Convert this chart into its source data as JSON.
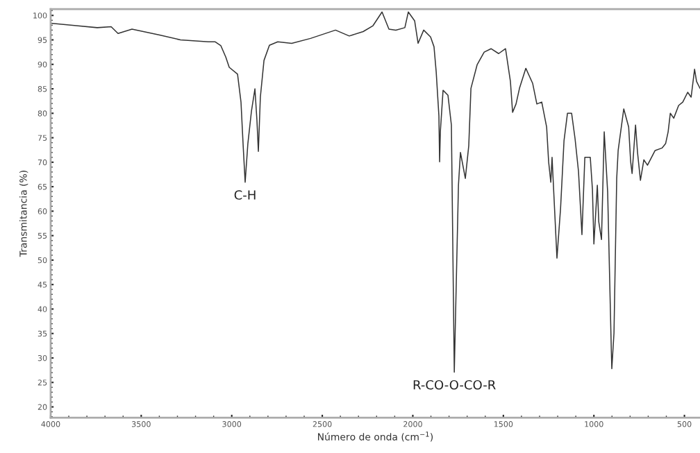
{
  "chart_data": {
    "type": "line",
    "xlabel": "Número de onda (cm$^{−1}$)",
    "ylabel": "Transmitancia (%)",
    "xlim": [
      4000,
      414
    ],
    "ylim": [
      17.8,
      101.3
    ],
    "xticks": [
      4000,
      3500,
      3000,
      2500,
      2000,
      1500,
      1000,
      500
    ],
    "yticks": [
      20,
      25,
      30,
      35,
      40,
      45,
      50,
      55,
      60,
      65,
      70,
      75,
      80,
      85,
      90,
      95,
      100
    ],
    "grid": false,
    "marker": "none",
    "line_style": "solid",
    "series": [
      {
        "color": "#333333",
        "x": [
          4000,
          3858,
          3743,
          3666,
          3628,
          3551,
          3398,
          3283,
          3129,
          3091,
          3060,
          3033,
          3014,
          2968,
          2949,
          2937,
          2926,
          2911,
          2891,
          2872,
          2861,
          2853,
          2842,
          2822,
          2792,
          2746,
          2669,
          2565,
          2427,
          2351,
          2274,
          2220,
          2170,
          2132,
          2094,
          2044,
          2025,
          1990,
          1971,
          1940,
          1902,
          1883,
          1871,
          1856,
          1852,
          1848,
          1833,
          1806,
          1787,
          1771,
          1748,
          1737,
          1710,
          1691,
          1679,
          1645,
          1606,
          1568,
          1526,
          1488,
          1461,
          1449,
          1430,
          1411,
          1376,
          1338,
          1315,
          1288,
          1261,
          1250,
          1238,
          1231,
          1204,
          1184,
          1165,
          1146,
          1123,
          1104,
          1085,
          1066,
          1050,
          1020,
          1008,
          1000,
          981,
          973,
          958,
          943,
          924,
          904,
          901,
          889,
          874,
          866,
          835,
          808,
          797,
          789,
          770,
          759,
          743,
          724,
          704,
          662,
          624,
          604,
          590,
          578,
          559,
          532,
          509,
          482,
          463,
          444,
          433,
          414
        ],
        "values": [
          98.4,
          97.9,
          97.5,
          97.7,
          96.3,
          97.2,
          96.0,
          95.0,
          94.6,
          94.6,
          93.8,
          91.5,
          89.4,
          88.0,
          82.3,
          73.4,
          65.9,
          73.8,
          80.5,
          85.0,
          78.6,
          72.2,
          83.3,
          90.8,
          93.9,
          94.6,
          94.3,
          95.3,
          97.0,
          95.8,
          96.7,
          97.9,
          100.7,
          97.2,
          97.0,
          97.5,
          100.7,
          98.9,
          94.3,
          97.0,
          95.6,
          93.6,
          88.5,
          79.5,
          70.1,
          76.2,
          84.7,
          83.7,
          77.6,
          27.1,
          65.3,
          72.0,
          66.7,
          73.4,
          85.1,
          89.9,
          92.5,
          93.2,
          92.2,
          93.2,
          86.5,
          80.2,
          81.9,
          85.1,
          89.2,
          86.1,
          81.9,
          82.3,
          77.2,
          70.1,
          65.9,
          71.0,
          50.4,
          60.6,
          74.4,
          80.0,
          80.0,
          74.8,
          68.1,
          55.2,
          71.0,
          71.0,
          64.4,
          53.3,
          65.3,
          57.8,
          54.2,
          76.2,
          63.9,
          32.0,
          27.8,
          35.1,
          66.7,
          72.4,
          80.9,
          77.2,
          70.1,
          67.7,
          77.6,
          72.0,
          66.3,
          70.5,
          69.4,
          72.4,
          72.9,
          73.8,
          76.2,
          80.0,
          79.0,
          81.6,
          82.3,
          84.3,
          83.3,
          89.0,
          86.5,
          85.1
        ]
      }
    ],
    "annotations": [
      {
        "text": "C-H",
        "x": 2926,
        "y": 65.9
      },
      {
        "text": "R-CO-O-CO-R",
        "x": 1771,
        "y": 27.1
      }
    ]
  }
}
